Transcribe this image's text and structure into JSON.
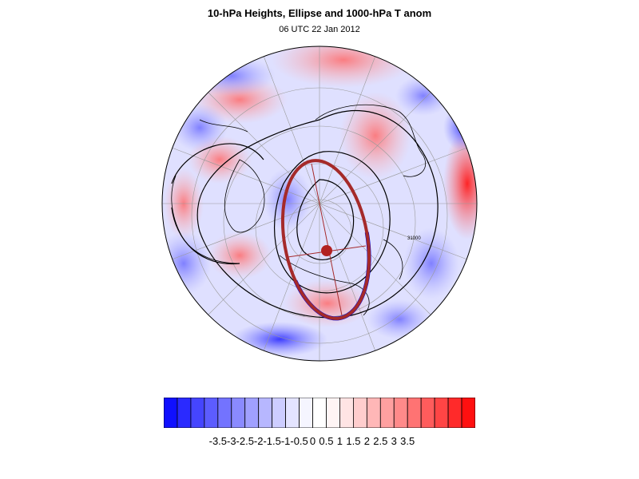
{
  "title": "10-hPa Heights, Ellipse and 1000-hPa T anom",
  "subtitle": "06 UTC 22 Jan 2012",
  "colorbar": {
    "labels": [
      "-3.5",
      "-3",
      "-2.5",
      "-2",
      "-1.5",
      "-1",
      "-0.5",
      "0",
      "0.5",
      "1",
      "1.5",
      "2",
      "2.5",
      "3",
      "3.5"
    ],
    "colors": [
      "#1010ff",
      "#2a2aff",
      "#4545ff",
      "#5c5cff",
      "#7373ff",
      "#8a8aff",
      "#a0a0ff",
      "#b7b7ff",
      "#cdcdff",
      "#e4e4ff",
      "#f5f5ff",
      "#ffffff",
      "#fff5f5",
      "#ffe4e4",
      "#ffcdcd",
      "#ffb7b7",
      "#ffa0a0",
      "#ff8a8a",
      "#ff7373",
      "#ff5c5c",
      "#ff4545",
      "#ff2a2a",
      "#ff1010"
    ]
  },
  "map": {
    "contour_labels": [
      "31000"
    ],
    "ellipse_color": "#a52a2a",
    "center_marker_color": "#b22222",
    "negative_arc_color": "#0000cc",
    "contour_color": "#000000"
  }
}
